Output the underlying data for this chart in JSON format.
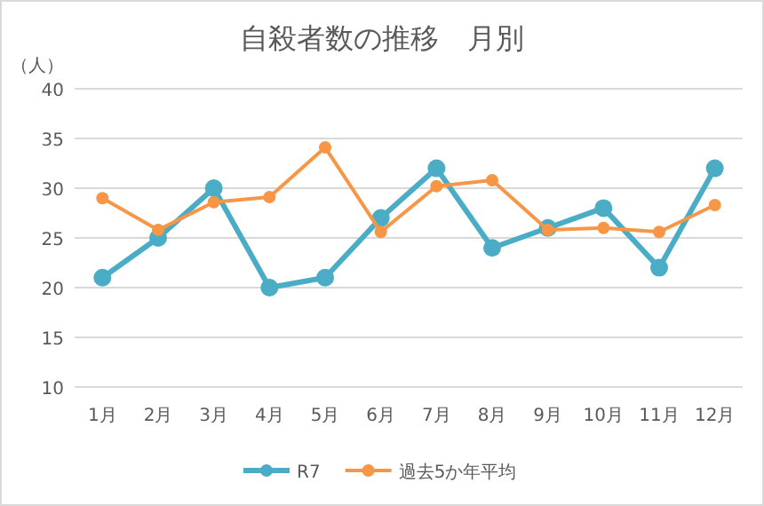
{
  "chart_data": {
    "type": "line",
    "title": "自殺者数の推移　月別",
    "ylabel": "（人）",
    "categories": [
      "1月",
      "2月",
      "3月",
      "4月",
      "5月",
      "6月",
      "7月",
      "8月",
      "9月",
      "10月",
      "11月",
      "12月"
    ],
    "series": [
      {
        "name": "R7",
        "color": "#4bacc6",
        "values": [
          21,
          25,
          30,
          20,
          21,
          27,
          32,
          24,
          26,
          28,
          22,
          32
        ]
      },
      {
        "name": "過去5か年平均",
        "color": "#f79646",
        "values": [
          29,
          25.8,
          28.6,
          29.1,
          34.1,
          25.6,
          30.2,
          30.8,
          25.8,
          26,
          25.6,
          28.3
        ]
      }
    ],
    "ylim": [
      10,
      40
    ],
    "yticks": [
      10,
      15,
      20,
      25,
      30,
      35,
      40
    ],
    "grid": "y",
    "legend": "bottom",
    "marker": "circle",
    "line_style": "solid"
  }
}
